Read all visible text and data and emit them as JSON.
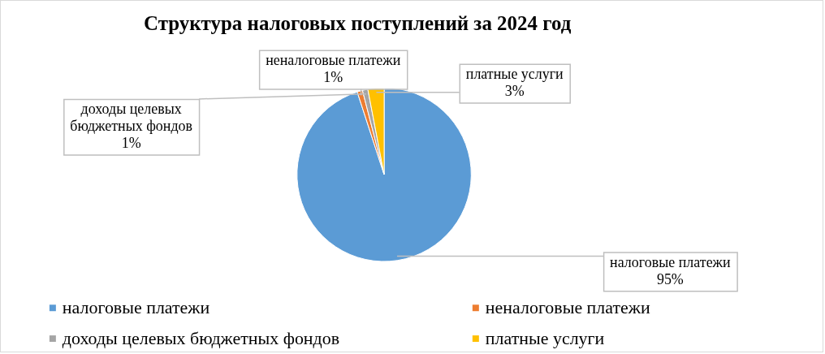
{
  "chart_data": {
    "type": "pie",
    "title": "Структура налоговых поступлений за 2024 год",
    "categories": [
      "налоговые платежи",
      "неналоговые платежи",
      "доходы целевых бюджетных фондов",
      "платные услуги"
    ],
    "values": [
      95,
      1,
      1,
      3
    ],
    "colors": [
      "#5b9bd5",
      "#ed7d31",
      "#a5a5a5",
      "#ffc000"
    ],
    "value_labels": [
      "95%",
      "1%",
      "1%",
      "3%"
    ],
    "legend": "bottom"
  }
}
